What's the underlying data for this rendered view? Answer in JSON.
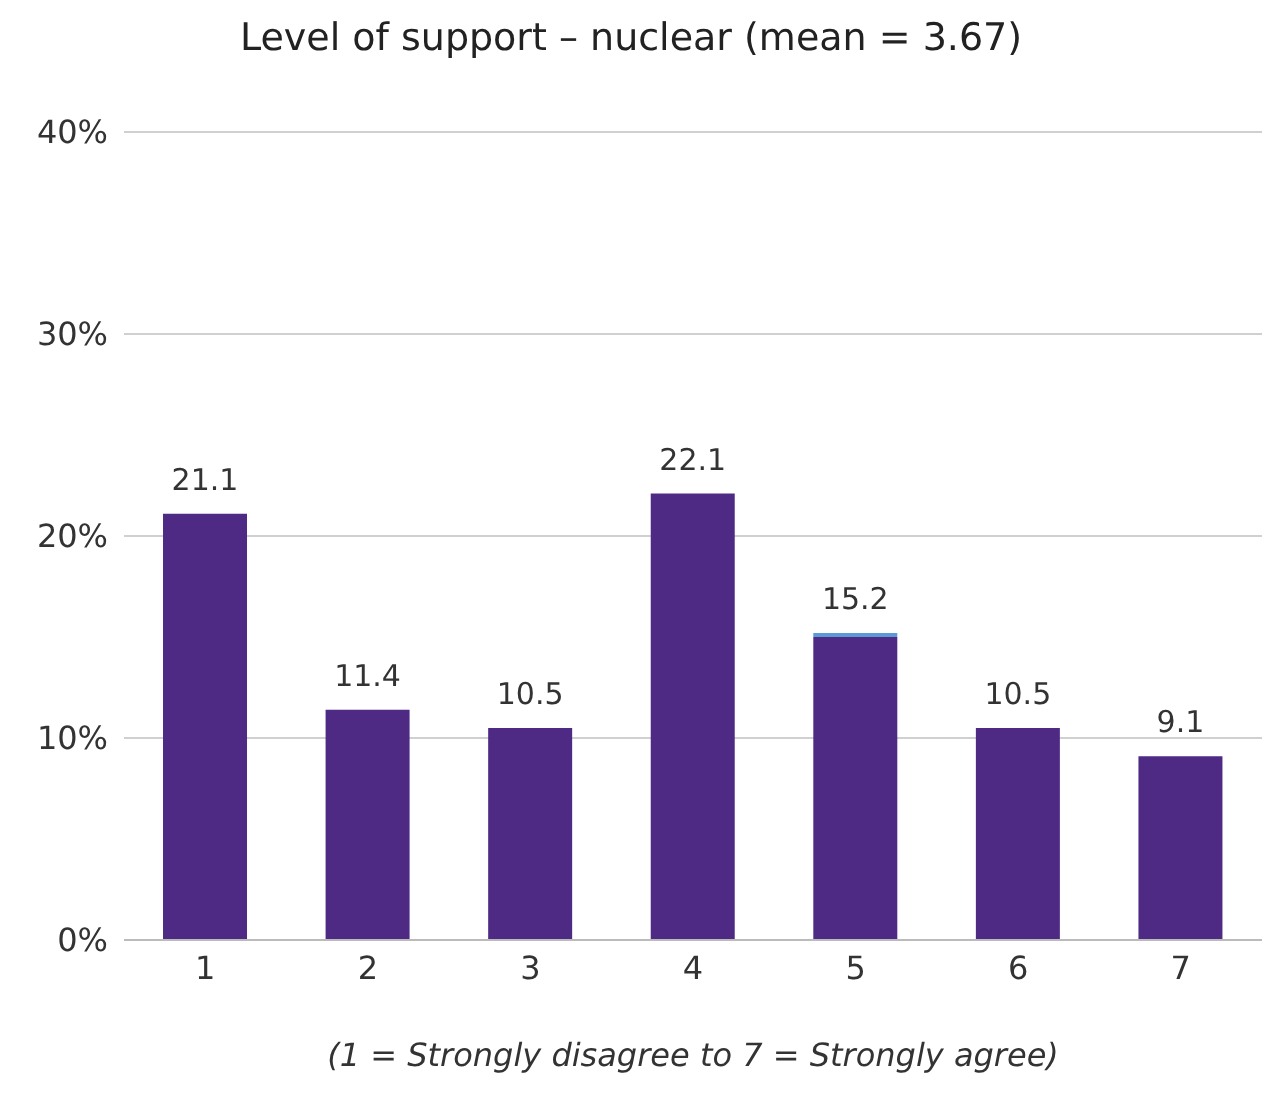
{
  "chart_data": {
    "type": "bar",
    "title": "Level of support – nuclear (mean = 3.67)",
    "xlabel": "(1 = Strongly disagree to 7 = Strongly agree)",
    "categories": [
      "1",
      "2",
      "3",
      "4",
      "5",
      "6",
      "7"
    ],
    "stacked": true,
    "series": [
      {
        "color": "#4e2a84",
        "values": [
          21.1,
          11.4,
          10.5,
          22.1,
          15.0,
          10.5,
          9.1
        ]
      },
      {
        "color": "#5b9bd5",
        "values": [
          null,
          null,
          null,
          null,
          0.2,
          null,
          null
        ]
      }
    ],
    "totals": [
      "21.1",
      "11.4",
      "10.5",
      "22.1",
      "15.2",
      "10.5",
      "9.1"
    ],
    "ylim": [
      0,
      40
    ],
    "yticks": [
      {
        "value": 0,
        "label": "0%"
      },
      {
        "value": 10,
        "label": "10%"
      },
      {
        "value": 20,
        "label": "20%"
      },
      {
        "value": 30,
        "label": "30%"
      },
      {
        "value": 40,
        "label": "40%"
      }
    ],
    "grid": "y"
  }
}
